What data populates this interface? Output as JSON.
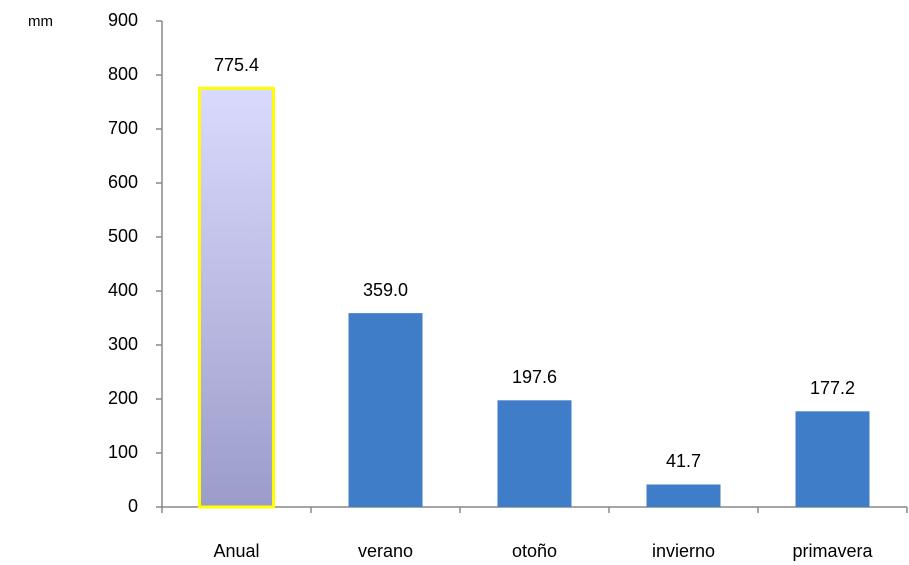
{
  "chart_data": {
    "type": "bar",
    "y_label": "mm",
    "categories": [
      "Anual",
      "verano",
      "otoño",
      "invierno",
      "primavera"
    ],
    "values": [
      775.4,
      359.0,
      197.6,
      41.7,
      177.2
    ],
    "value_labels": [
      "775.4",
      "359.0",
      "197.6",
      "41.7",
      "177.2"
    ],
    "colors": [
      "#9c9cca",
      "#3f7dc8",
      "#3f7dc8",
      "#3f7dc8",
      "#3f7dc8"
    ],
    "gradients": [
      [
        "#dadafe",
        "#9c9cca"
      ],
      null,
      null,
      null,
      null
    ],
    "edge_colors": [
      "#ffff00",
      null,
      null,
      null,
      null
    ],
    "ylim": [
      0,
      900
    ],
    "yticks": [
      0,
      100,
      200,
      300,
      400,
      500,
      600,
      700,
      800,
      900
    ],
    "grid": false
  }
}
